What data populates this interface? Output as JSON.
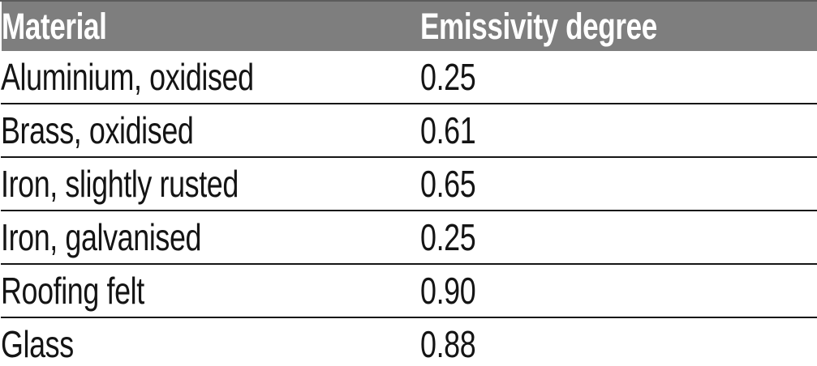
{
  "table": {
    "headers": {
      "material": "Material",
      "emissivity": "Emissivity degree"
    },
    "rows": [
      {
        "material": "Aluminium, oxidised",
        "emissivity": "0.25"
      },
      {
        "material": "Brass, oxidised",
        "emissivity": "0.61"
      },
      {
        "material": "Iron, slightly rusted",
        "emissivity": "0.65"
      },
      {
        "material": "Iron, galvanised",
        "emissivity": "0.25"
      },
      {
        "material": "Roofing felt",
        "emissivity": "0.90"
      },
      {
        "material": "Glass",
        "emissivity": "0.88"
      }
    ]
  },
  "colors": {
    "background": "#ffffff",
    "header_bg": "#7e7e7e",
    "header_top_edge": "#5c5c5c",
    "header_text": "#ffffff",
    "body_text": "#141414",
    "separator": "#161616"
  }
}
